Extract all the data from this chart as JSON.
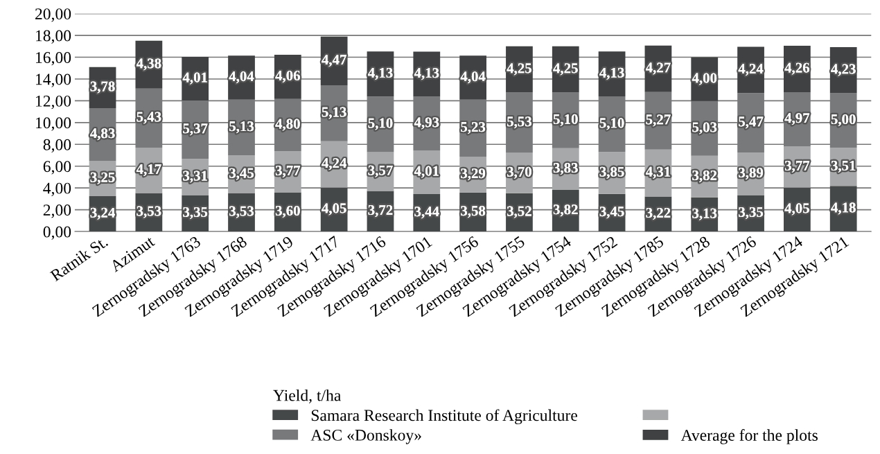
{
  "chart_data": {
    "type": "bar",
    "stacked": true,
    "legend_title": "Yield, t/ha",
    "legend": "bottom",
    "grid": "y",
    "categories": [
      "Ratnik St.",
      "Azimut",
      "Zernogradsky 1763",
      "Zernogradsky 1768",
      "Zernogradsky 1719",
      "Zernogradsky 1717",
      "Zernogradsky 1716",
      "Zernogradsky 1701",
      "Zernogradsky 1756",
      "Zernogradsky 1755",
      "Zernogradsky 1754",
      "Zernogradsky 1752",
      "Zernogradsky 1785",
      "Zernogradsky 1728",
      "Zernogradsky 1726",
      "Zernogradsky 1724",
      "Zernogradsky 1721"
    ],
    "ylim": [
      0,
      20
    ],
    "yticks": [
      {
        "value": 0,
        "label": "0,00"
      },
      {
        "value": 2,
        "label": "2,00"
      },
      {
        "value": 4,
        "label": "4,00"
      },
      {
        "value": 6,
        "label": "6,00"
      },
      {
        "value": 8,
        "label": "8,00"
      },
      {
        "value": 10,
        "label": "10,00"
      },
      {
        "value": 12,
        "label": "12,00"
      },
      {
        "value": 14,
        "label": "14,00"
      },
      {
        "value": 16,
        "label": "16,00"
      },
      {
        "value": 18,
        "label": "18,00"
      },
      {
        "value": 20,
        "label": "20,00"
      }
    ],
    "series": [
      {
        "name": "Samara Research Institute of Agriculture",
        "color": "#454849",
        "values": [
          3.24,
          3.53,
          3.35,
          3.53,
          3.6,
          4.05,
          3.72,
          3.44,
          3.58,
          3.52,
          3.82,
          3.45,
          3.22,
          3.13,
          3.35,
          4.05,
          4.18
        ],
        "value_labels": [
          "3,24",
          "3,53",
          "3,35",
          "3,53",
          "3,60",
          "4,05",
          "3,72",
          "3,44",
          "3,58",
          "3,52",
          "3,82",
          "3,45",
          "3,22",
          "3,13",
          "3,35",
          "4,05",
          "4,18"
        ]
      },
      {
        "color": "#a7a8a9",
        "values": [
          3.25,
          4.17,
          3.31,
          3.45,
          3.77,
          4.24,
          3.57,
          4.01,
          3.29,
          3.7,
          3.83,
          3.85,
          4.31,
          3.82,
          3.89,
          3.77,
          3.51
        ],
        "value_labels": [
          "3,25",
          "4,17",
          "3,31",
          "3,45",
          "3,77",
          "4,24",
          "3,57",
          "4,01",
          "3,29",
          "3,70",
          "3,83",
          "3,85",
          "4,31",
          "3,82",
          "3,89",
          "3,77",
          "3,51"
        ]
      },
      {
        "name": "ASC «Donskoy»",
        "color": "#77797b",
        "values": [
          4.83,
          5.43,
          5.37,
          5.13,
          4.8,
          5.13,
          5.1,
          4.93,
          5.23,
          5.53,
          5.1,
          5.1,
          5.27,
          5.03,
          5.47,
          4.97,
          5.0
        ],
        "value_labels": [
          "4,83",
          "5,43",
          "5,37",
          "5,13",
          "4,80",
          "5,13",
          "5,10",
          "4,93",
          "5,23",
          "5,53",
          "5,10",
          "5,10",
          "5,27",
          "5,03",
          "5,47",
          "4,97",
          "5,00"
        ]
      },
      {
        "name": "Average for the plots",
        "color": "#3f4142",
        "values": [
          3.78,
          4.38,
          4.01,
          4.04,
          4.06,
          4.47,
          4.13,
          4.13,
          4.04,
          4.25,
          4.25,
          4.13,
          4.27,
          4.0,
          4.24,
          4.26,
          4.23
        ],
        "value_labels": [
          "3,78",
          "4,38",
          "4,01",
          "4,04",
          "4,06",
          "4,47",
          "4,13",
          "4,13",
          "4,04",
          "4,25",
          "4,25",
          "4,13",
          "4,27",
          "4,00",
          "4,24",
          "4,26",
          "4,23"
        ]
      }
    ]
  }
}
